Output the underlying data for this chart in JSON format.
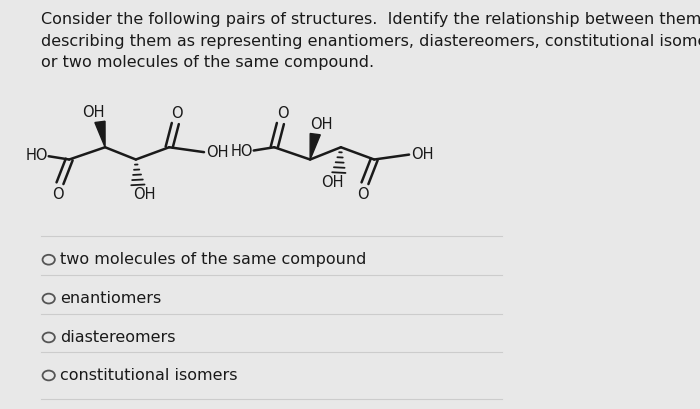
{
  "background_color": "#e8e8e8",
  "title_text": "Consider the following pairs of structures.  Identify the relationship between them by\ndescribing them as representing enantiomers, diastereomers, constitutional isomers,\nor two molecules of the same compound.",
  "title_fontsize": 11.5,
  "options": [
    "two molecules of the same compound",
    "enantiomers",
    "diastereomers",
    "constitutional isomers"
  ],
  "option_fontsize": 11.5,
  "line_color": "#cccccc",
  "text_color": "#1a1a1a",
  "bond_color": "#1a1a1a"
}
